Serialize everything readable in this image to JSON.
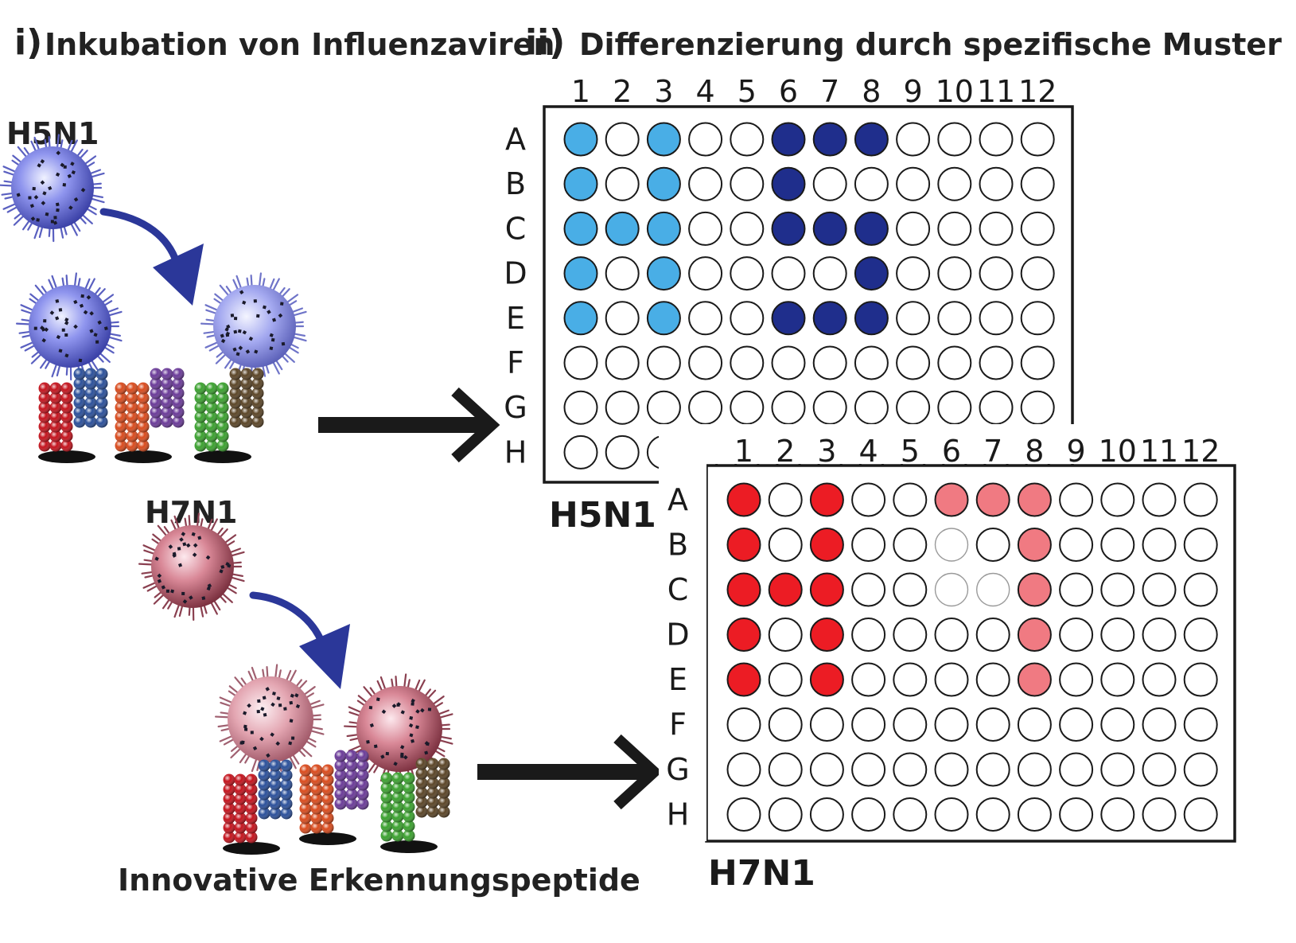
{
  "section_i": {
    "numeral": "i)",
    "title": "Inkubation von Influenzaviren"
  },
  "section_ii": {
    "numeral": "ii)",
    "title": "Differenzierung durch spezifische Muster"
  },
  "viruses": {
    "top_label": "H5N1",
    "bottom_label": "H7N1"
  },
  "footer": {
    "caption": "Innovative Erkennungspeptide"
  },
  "colors": {
    "virus_blue": "#7b82e8",
    "virus_pink": "#d9808e",
    "curve_arrow": "#2b3799",
    "black_arrow": "#1a1a1a",
    "well_light_blue": "#49aee6",
    "well_dark_blue": "#1f2e8c",
    "well_red": "#ec1c24",
    "well_light_red": "#f07a82",
    "well_empty": "#ffffff"
  },
  "peptide_stack_colors": [
    "#c4121c",
    "#2a4f9a",
    "#d94a1c",
    "#6a3a98",
    "#3aa12e",
    "#5a4426"
  ],
  "plates": [
    {
      "name": "H5N1",
      "columns": [
        "1",
        "2",
        "3",
        "4",
        "5",
        "6",
        "7",
        "8",
        "9",
        "10",
        "11",
        "12"
      ],
      "rows": [
        "A",
        "B",
        "C",
        "D",
        "E",
        "F",
        "G",
        "H"
      ],
      "color_key": {
        "0": "empty",
        "1": "light-blue",
        "2": "dark-blue"
      },
      "wells": [
        [
          1,
          0,
          1,
          0,
          0,
          2,
          2,
          2,
          0,
          0,
          0,
          0
        ],
        [
          1,
          0,
          1,
          0,
          0,
          2,
          0,
          0,
          0,
          0,
          0,
          0
        ],
        [
          1,
          1,
          1,
          0,
          0,
          2,
          2,
          2,
          0,
          0,
          0,
          0
        ],
        [
          1,
          0,
          1,
          0,
          0,
          0,
          0,
          2,
          0,
          0,
          0,
          0
        ],
        [
          1,
          0,
          1,
          0,
          0,
          2,
          2,
          2,
          0,
          0,
          0,
          0
        ],
        [
          0,
          0,
          0,
          0,
          0,
          0,
          0,
          0,
          0,
          0,
          0,
          0
        ],
        [
          0,
          0,
          0,
          0,
          0,
          0,
          0,
          0,
          0,
          0,
          0,
          0
        ],
        [
          0,
          0,
          0,
          0,
          0,
          0,
          0,
          0,
          0,
          0,
          0,
          0
        ]
      ]
    },
    {
      "name": "H7N1",
      "columns": [
        "1",
        "2",
        "3",
        "4",
        "5",
        "6",
        "7",
        "8",
        "9",
        "10",
        "11",
        "12"
      ],
      "rows": [
        "A",
        "B",
        "C",
        "D",
        "E",
        "F",
        "G",
        "H"
      ],
      "color_key": {
        "0": "empty",
        "1": "red",
        "2": "light-red",
        "3": "faint"
      },
      "wells": [
        [
          1,
          0,
          1,
          0,
          0,
          2,
          2,
          2,
          0,
          0,
          0,
          0
        ],
        [
          1,
          0,
          1,
          0,
          0,
          3,
          0,
          2,
          0,
          0,
          0,
          0
        ],
        [
          1,
          1,
          1,
          0,
          0,
          3,
          3,
          2,
          0,
          0,
          0,
          0
        ],
        [
          1,
          0,
          1,
          0,
          0,
          0,
          0,
          2,
          0,
          0,
          0,
          0
        ],
        [
          1,
          0,
          1,
          0,
          0,
          0,
          0,
          2,
          0,
          0,
          0,
          0
        ],
        [
          0,
          0,
          0,
          0,
          0,
          0,
          0,
          0,
          0,
          0,
          0,
          0
        ],
        [
          0,
          0,
          0,
          0,
          0,
          0,
          0,
          0,
          0,
          0,
          0,
          0
        ],
        [
          0,
          0,
          0,
          0,
          0,
          0,
          0,
          0,
          0,
          0,
          0,
          0
        ]
      ]
    }
  ]
}
